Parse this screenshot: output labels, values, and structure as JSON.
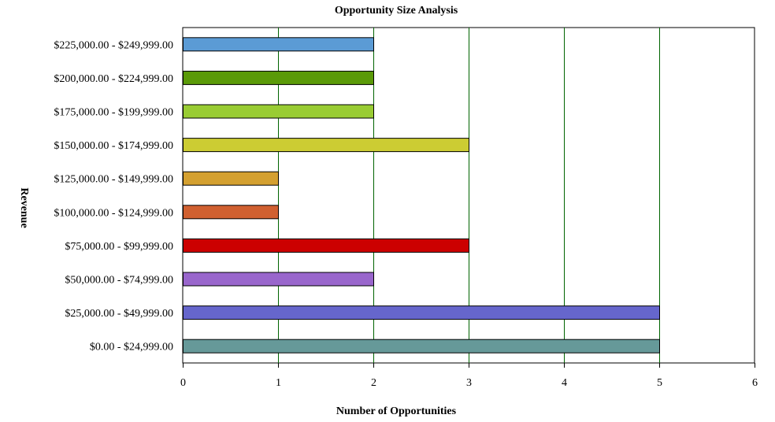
{
  "chart_data": {
    "type": "bar",
    "orientation": "horizontal",
    "title": "Opportunity Size Analysis",
    "xlabel": "Number of Opportunities",
    "ylabel": "Revenue",
    "xlim": [
      0,
      6
    ],
    "xticks": [
      "0",
      "1",
      "2",
      "3",
      "4",
      "5",
      "6"
    ],
    "grid": true,
    "grid_color": "#006400",
    "categories": [
      "$225,000.00 - $249,999.00",
      "$200,000.00 - $224,999.00",
      "$175,000.00 - $199,999.00",
      "$150,000.00 - $174,999.00",
      "$125,000.00 - $149,999.00",
      "$100,000.00 - $124,999.00",
      "$75,000.00 - $99,999.00",
      "$50,000.00 - $74,999.00",
      "$25,000.00 - $49,999.00",
      "$0.00 - $24,999.00"
    ],
    "values": [
      2,
      2,
      2,
      3,
      1,
      1,
      3,
      2,
      5,
      5
    ],
    "colors": [
      "#5B9BD5",
      "#5A9A08",
      "#99CC33",
      "#CCCC33",
      "#D4A030",
      "#D06030",
      "#CC0000",
      "#9966CC",
      "#6666CC",
      "#669999"
    ]
  }
}
